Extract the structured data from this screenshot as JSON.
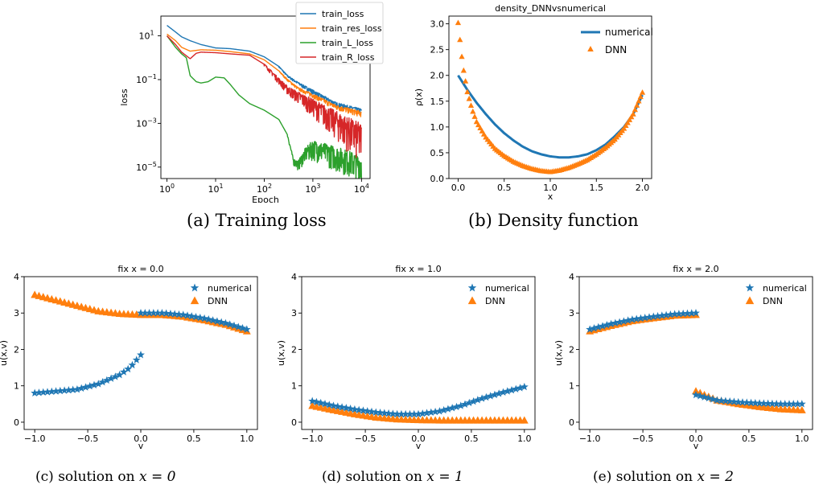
{
  "colors": {
    "blue": "#1f77b4",
    "orange": "#ff7f0e",
    "green": "#2ca02c",
    "red": "#d62728"
  },
  "captions": {
    "a": "(a)  Training loss",
    "b": "(b)  Density function",
    "c_prefix": "(c)  solution on ",
    "c_math": "x = 0",
    "d_prefix": "(d)  solution on ",
    "d_math": "x = 1",
    "e_prefix": "(e)  solution on ",
    "e_math": "x = 2"
  },
  "chart_data": [
    {
      "id": "training-loss",
      "type": "line",
      "title": "",
      "xlabel": "Epoch",
      "ylabel": "loss",
      "xscale": "log",
      "yscale": "log",
      "xlim": [
        0.75,
        15000
      ],
      "ylim": [
        3e-06,
        80
      ],
      "xticks": [
        1,
        10,
        100,
        1000,
        10000
      ],
      "xtick_labels": [
        "10^0",
        "10^1",
        "10^2",
        "10^3",
        "10^4"
      ],
      "yticks": [
        1e-05,
        0.001,
        0.1,
        10
      ],
      "ytick_labels": [
        "10^-5",
        "10^-3",
        "10^-1",
        "10^1"
      ],
      "legend_position": "top-right",
      "series": [
        {
          "name": "train_loss",
          "color": "#1f77b4",
          "points": [
            [
              1,
              30
            ],
            [
              1.5,
              15
            ],
            [
              2,
              9
            ],
            [
              3,
              6
            ],
            [
              5,
              4
            ],
            [
              10,
              2.8
            ],
            [
              20,
              2.6
            ],
            [
              50,
              2
            ],
            [
              100,
              1.1
            ],
            [
              200,
              0.4
            ],
            [
              300,
              0.15
            ],
            [
              500,
              0.07
            ],
            [
              1000,
              0.03
            ],
            [
              3000,
              0.008
            ],
            [
              10000,
              0.004
            ]
          ],
          "noise": [
            [
              200,
              1.1
            ],
            [
              1000,
              1.4
            ],
            [
              10000,
              1.5
            ]
          ]
        },
        {
          "name": "train_res_loss",
          "color": "#ff7f0e",
          "points": [
            [
              1,
              12
            ],
            [
              1.5,
              6
            ],
            [
              2,
              3
            ],
            [
              3,
              2
            ],
            [
              5,
              2.3
            ],
            [
              10,
              2.2
            ],
            [
              20,
              1.9
            ],
            [
              50,
              1.5
            ],
            [
              100,
              0.8
            ],
            [
              200,
              0.25
            ],
            [
              300,
              0.1
            ],
            [
              500,
              0.04
            ],
            [
              1000,
              0.02
            ],
            [
              3000,
              0.006
            ],
            [
              10000,
              0.003
            ]
          ],
          "noise": [
            [
              200,
              1.1
            ],
            [
              1000,
              1.4
            ],
            [
              10000,
              1.6
            ]
          ]
        },
        {
          "name": "train_L_loss",
          "color": "#2ca02c",
          "points": [
            [
              1,
              10
            ],
            [
              1.5,
              3
            ],
            [
              2,
              1.5
            ],
            [
              2.5,
              1
            ],
            [
              3,
              0.15
            ],
            [
              4,
              0.08
            ],
            [
              5,
              0.07
            ],
            [
              7,
              0.08
            ],
            [
              10,
              0.13
            ],
            [
              15,
              0.12
            ],
            [
              20,
              0.06
            ],
            [
              30,
              0.02
            ],
            [
              50,
              0.008
            ],
            [
              100,
              0.004
            ],
            [
              200,
              0.0015
            ],
            [
              300,
              0.0003
            ],
            [
              400,
              2e-05
            ],
            [
              500,
              1.5e-05
            ],
            [
              700,
              5e-05
            ],
            [
              1000,
              0.0001
            ],
            [
              2000,
              6e-05
            ],
            [
              5000,
              3e-05
            ],
            [
              10000,
              1.5e-05
            ]
          ],
          "noise": [
            [
              300,
              1.2
            ],
            [
              1000,
              5
            ],
            [
              3000,
              7
            ],
            [
              10000,
              9
            ]
          ]
        },
        {
          "name": "train_R_loss",
          "color": "#d62728",
          "points": [
            [
              1,
              10
            ],
            [
              1.5,
              4
            ],
            [
              2,
              1.8
            ],
            [
              3,
              0.9
            ],
            [
              4,
              1.6
            ],
            [
              5,
              1.8
            ],
            [
              10,
              1.7
            ],
            [
              20,
              1.5
            ],
            [
              50,
              1.3
            ],
            [
              100,
              0.5
            ],
            [
              200,
              0.1
            ],
            [
              300,
              0.04
            ],
            [
              500,
              0.02
            ],
            [
              1000,
              0.008
            ],
            [
              2000,
              0.003
            ],
            [
              5000,
              0.0008
            ],
            [
              10000,
              0.0003
            ]
          ],
          "noise": [
            [
              100,
              1.2
            ],
            [
              300,
              2
            ],
            [
              1000,
              4
            ],
            [
              3000,
              10
            ],
            [
              10000,
              30
            ]
          ]
        }
      ]
    },
    {
      "id": "density",
      "type": "line",
      "title": "density_DNNvsnumerical",
      "xlabel": "x",
      "ylabel": "ρ(x)",
      "xlim": [
        -0.1,
        2.1
      ],
      "ylim": [
        0,
        3.15
      ],
      "xticks": [
        0,
        0.5,
        1,
        1.5,
        2
      ],
      "xtick_labels": [
        "0.0",
        "0.5",
        "1.0",
        "1.5",
        "2.0"
      ],
      "yticks": [
        0,
        0.5,
        1,
        1.5,
        2,
        2.5,
        3
      ],
      "ytick_labels": [
        "0.0",
        "0.5",
        "1.0",
        "1.5",
        "2.0",
        "2.5",
        "3.0"
      ],
      "legend_position": "top-right",
      "series": [
        {
          "name": "numerical",
          "color": "#1f77b4",
          "style": "line",
          "points": [
            [
              0,
              2.0
            ],
            [
              0.1,
              1.72
            ],
            [
              0.2,
              1.47
            ],
            [
              0.3,
              1.25
            ],
            [
              0.4,
              1.05
            ],
            [
              0.5,
              0.88
            ],
            [
              0.6,
              0.74
            ],
            [
              0.7,
              0.62
            ],
            [
              0.8,
              0.53
            ],
            [
              0.9,
              0.47
            ],
            [
              1.0,
              0.43
            ],
            [
              1.1,
              0.41
            ],
            [
              1.2,
              0.41
            ],
            [
              1.3,
              0.43
            ],
            [
              1.4,
              0.47
            ],
            [
              1.5,
              0.55
            ],
            [
              1.6,
              0.66
            ],
            [
              1.7,
              0.82
            ],
            [
              1.8,
              1.0
            ],
            [
              1.9,
              1.25
            ],
            [
              2.0,
              1.62
            ]
          ]
        },
        {
          "name": "DNN",
          "color": "#ff7f0e",
          "style": "triangle",
          "points": [
            [
              0,
              3.02
            ],
            [
              0.05,
              2.2
            ],
            [
              0.1,
              1.68
            ],
            [
              0.15,
              1.35
            ],
            [
              0.2,
              1.1
            ],
            [
              0.3,
              0.8
            ],
            [
              0.4,
              0.58
            ],
            [
              0.5,
              0.44
            ],
            [
              0.6,
              0.33
            ],
            [
              0.7,
              0.25
            ],
            [
              0.8,
              0.19
            ],
            [
              0.9,
              0.15
            ],
            [
              1.0,
              0.13
            ],
            [
              1.1,
              0.16
            ],
            [
              1.2,
              0.21
            ],
            [
              1.3,
              0.28
            ],
            [
              1.4,
              0.36
            ],
            [
              1.5,
              0.47
            ],
            [
              1.6,
              0.6
            ],
            [
              1.7,
              0.76
            ],
            [
              1.8,
              0.97
            ],
            [
              1.9,
              1.25
            ],
            [
              2.0,
              1.67
            ]
          ]
        }
      ]
    },
    {
      "id": "solution-x0",
      "type": "scatter",
      "title": "fix x = 0.0",
      "xlabel": "v",
      "ylabel": "u(x,v)",
      "xlim": [
        -1.1,
        1.1
      ],
      "ylim": [
        -0.2,
        4.0
      ],
      "xticks": [
        -1,
        -0.5,
        0,
        0.5,
        1
      ],
      "xtick_labels": [
        "-1.0",
        "-0.5",
        "0.0",
        "0.5",
        "1.0"
      ],
      "yticks": [
        0,
        1,
        2,
        3,
        4
      ],
      "ytick_labels": [
        "0",
        "1",
        "2",
        "3",
        "4"
      ],
      "legend_position": "top-right",
      "series": [
        {
          "name": "numerical",
          "color": "#1f77b4",
          "marker": "star",
          "segments": [
            [
              [
                -1.0,
                0.8
              ],
              [
                -0.8,
                0.85
              ],
              [
                -0.6,
                0.9
              ],
              [
                -0.4,
                1.05
              ],
              [
                -0.2,
                1.3
              ],
              [
                -0.1,
                1.5
              ],
              [
                0.0,
                1.85
              ]
            ],
            [
              [
                0.0,
                3.0
              ],
              [
                0.2,
                3.0
              ],
              [
                0.4,
                2.95
              ],
              [
                0.6,
                2.85
              ],
              [
                0.8,
                2.72
              ],
              [
                1.0,
                2.55
              ]
            ]
          ]
        },
        {
          "name": "DNN",
          "color": "#ff7f0e",
          "marker": "triangle",
          "segments": [
            [
              [
                -1.0,
                3.5
              ],
              [
                -0.8,
                3.35
              ],
              [
                -0.6,
                3.2
              ],
              [
                -0.4,
                3.05
              ],
              [
                -0.2,
                2.98
              ],
              [
                0.0,
                2.95
              ],
              [
                0.2,
                2.95
              ],
              [
                0.4,
                2.9
              ],
              [
                0.6,
                2.8
              ],
              [
                0.8,
                2.68
              ],
              [
                1.0,
                2.5
              ]
            ]
          ]
        }
      ]
    },
    {
      "id": "solution-x1",
      "type": "scatter",
      "title": "fix x = 1.0",
      "xlabel": "v",
      "ylabel": "u(x,v)",
      "xlim": [
        -1.1,
        1.1
      ],
      "ylim": [
        -0.2,
        4.0
      ],
      "xticks": [
        -1,
        -0.5,
        0,
        0.5,
        1
      ],
      "xtick_labels": [
        "-1.0",
        "-0.5",
        "0.0",
        "0.5",
        "1.0"
      ],
      "yticks": [
        0,
        1,
        2,
        3,
        4
      ],
      "ytick_labels": [
        "0",
        "1",
        "2",
        "3",
        "4"
      ],
      "legend_position": "top-right",
      "series": [
        {
          "name": "numerical",
          "color": "#1f77b4",
          "marker": "star",
          "segments": [
            [
              [
                -1.0,
                0.58
              ],
              [
                -0.8,
                0.45
              ],
              [
                -0.6,
                0.35
              ],
              [
                -0.4,
                0.27
              ],
              [
                -0.2,
                0.22
              ],
              [
                0.0,
                0.22
              ],
              [
                0.2,
                0.3
              ],
              [
                0.4,
                0.45
              ],
              [
                0.6,
                0.65
              ],
              [
                0.8,
                0.82
              ],
              [
                1.0,
                0.97
              ]
            ]
          ]
        },
        {
          "name": "DNN",
          "color": "#ff7f0e",
          "marker": "triangle",
          "segments": [
            [
              [
                -1.0,
                0.45
              ],
              [
                -0.8,
                0.33
              ],
              [
                -0.6,
                0.22
              ],
              [
                -0.4,
                0.13
              ],
              [
                -0.2,
                0.08
              ],
              [
                0.0,
                0.06
              ],
              [
                0.2,
                0.05
              ],
              [
                0.4,
                0.05
              ],
              [
                0.6,
                0.05
              ],
              [
                0.8,
                0.05
              ],
              [
                1.0,
                0.05
              ]
            ]
          ]
        }
      ]
    },
    {
      "id": "solution-x2",
      "type": "scatter",
      "title": "fix x = 2.0",
      "xlabel": "v",
      "ylabel": "u(x,v)",
      "xlim": [
        -1.1,
        1.1
      ],
      "ylim": [
        -0.2,
        4.0
      ],
      "xticks": [
        -1,
        -0.5,
        0,
        0.5,
        1
      ],
      "xtick_labels": [
        "-1.0",
        "-0.5",
        "0.0",
        "0.5",
        "1.0"
      ],
      "yticks": [
        0,
        1,
        2,
        3,
        4
      ],
      "ytick_labels": [
        "0",
        "1",
        "2",
        "3",
        "4"
      ],
      "legend_position": "top-right",
      "series": [
        {
          "name": "numerical",
          "color": "#1f77b4",
          "marker": "star",
          "segments": [
            [
              [
                -1.0,
                2.55
              ],
              [
                -0.8,
                2.7
              ],
              [
                -0.6,
                2.82
              ],
              [
                -0.4,
                2.9
              ],
              [
                -0.2,
                2.97
              ],
              [
                0.0,
                3.0
              ]
            ],
            [
              [
                0.0,
                0.75
              ],
              [
                0.2,
                0.6
              ],
              [
                0.4,
                0.55
              ],
              [
                0.6,
                0.52
              ],
              [
                0.8,
                0.5
              ],
              [
                1.0,
                0.5
              ]
            ]
          ]
        },
        {
          "name": "DNN",
          "color": "#ff7f0e",
          "marker": "triangle",
          "segments": [
            [
              [
                -1.0,
                2.5
              ],
              [
                -0.8,
                2.65
              ],
              [
                -0.6,
                2.78
              ],
              [
                -0.4,
                2.86
              ],
              [
                -0.2,
                2.93
              ],
              [
                0.0,
                2.95
              ]
            ],
            [
              [
                0.0,
                0.85
              ],
              [
                0.2,
                0.6
              ],
              [
                0.4,
                0.5
              ],
              [
                0.6,
                0.42
              ],
              [
                0.8,
                0.36
              ],
              [
                1.0,
                0.33
              ]
            ]
          ]
        }
      ]
    }
  ]
}
